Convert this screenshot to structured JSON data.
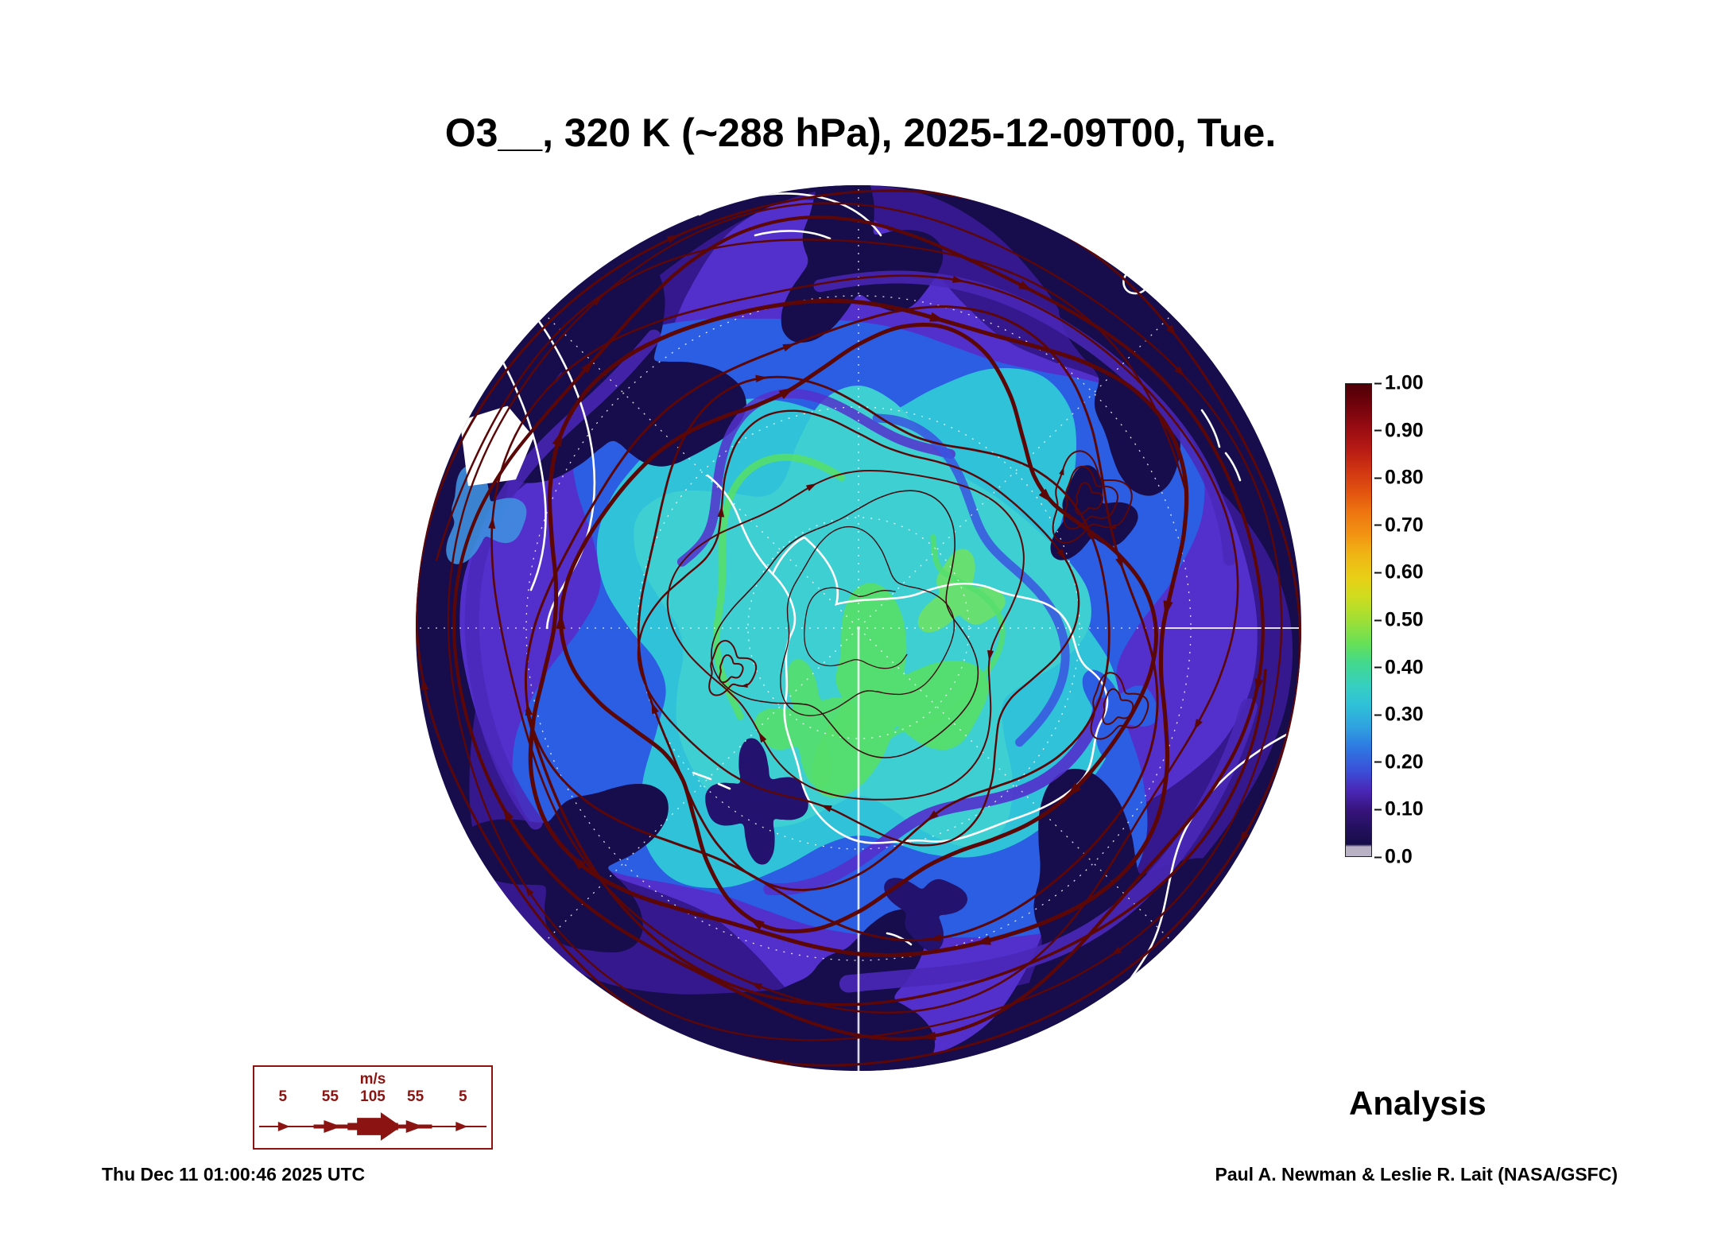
{
  "title": "O3__, 320 K (~288 hPa), 2025-12-09T00, Tue.",
  "analysis_label": "Analysis",
  "footer": {
    "generated": "Thu Dec 11 01:00:46 2025 UTC",
    "credit": "Paul A. Newman & Leslie R. Lait (NASA/GSFC)"
  },
  "wind_legend": {
    "unit": "m/s",
    "ticks": [
      "5",
      "55",
      "105",
      "55",
      "5"
    ]
  },
  "colorbar": {
    "ticks": [
      "1.00",
      "0.90",
      "0.80",
      "0.70",
      "0.60",
      "0.50",
      "0.40",
      "0.30",
      "0.20",
      "0.10",
      "0.0"
    ]
  },
  "colors": {
    "streamline": "#5c0707",
    "coastline": "#ffffff",
    "graticule": "#ffffff",
    "legend_accent": "#8b1412",
    "field_low": "#170d4c"
  },
  "chart_data": {
    "type": "heatmap",
    "title": "O3__, 320 K (~288 hPa), 2025-12-09T00, Tue.",
    "species": "O3__",
    "level": "320 K (~288 hPa)",
    "valid_time": "2025-12-09T00",
    "valid_day": "Tue.",
    "product": "Analysis",
    "projection": "south polar stereographic",
    "colorbar": {
      "range": [
        0.0,
        1.0
      ],
      "tick_values": [
        1.0,
        0.9,
        0.8,
        0.7,
        0.6,
        0.5,
        0.4,
        0.3,
        0.2,
        0.1,
        0.0
      ],
      "colors_low_to_high": [
        "#b9b2c4",
        "#170d49",
        "#241060",
        "#38157e",
        "#4a28b8",
        "#3a4fd8",
        "#2e78e2",
        "#2f9fe0",
        "#2fc0d8",
        "#36cfc0",
        "#43d98c",
        "#66e057",
        "#9fdf35",
        "#cfdc1e",
        "#e8cf16",
        "#f0b414",
        "#f29413",
        "#ee7410",
        "#e25410",
        "#cf3312",
        "#b81b14",
        "#960b12",
        "#6d020c",
        "#4f0005"
      ]
    },
    "field_summary": "Normalized ozone 0.0-1.0 on the 320 K surface over the Southern Hemisphere: dark navy (0.0-0.1) over midlatitude ring, purple/blue (0.1-0.3) transition band, cyan (0.3-0.4) core over and around Antarctica with green filaments (~0.4-0.5) near the pole.",
    "overlay": {
      "type": "streamlines",
      "quantity": "wind",
      "unit": "m/s",
      "legend_values": [
        5,
        55,
        105,
        55,
        5
      ]
    }
  }
}
